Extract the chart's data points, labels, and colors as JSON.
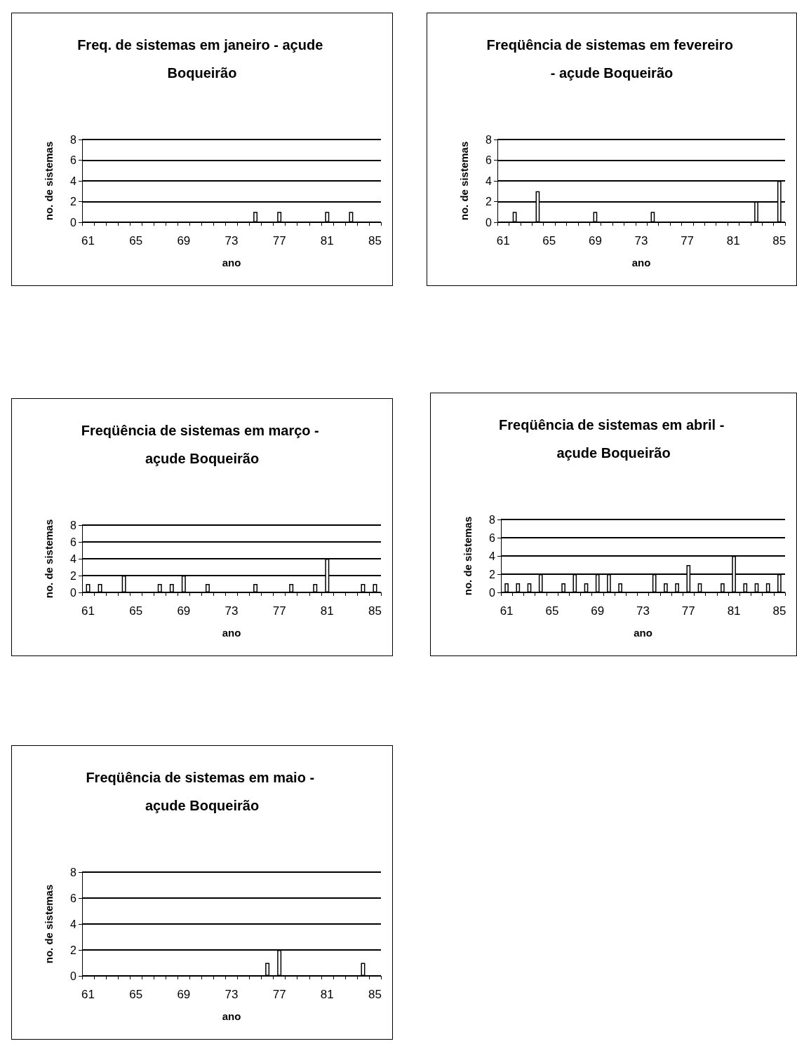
{
  "chart_data": [
    {
      "type": "bar",
      "title": "Freq. de sistemas em janeiro - açude Boqueirão",
      "xlabel": "ano",
      "ylabel": "no. de sistemas",
      "categories": [
        "61",
        null,
        null,
        null,
        "65",
        null,
        null,
        null,
        "69",
        null,
        null,
        null,
        "73",
        null,
        null,
        null,
        "77",
        null,
        null,
        null,
        "81",
        null,
        null,
        null,
        "85"
      ],
      "values": [
        0,
        0,
        0,
        0,
        0,
        0,
        0,
        0,
        0,
        0,
        0,
        0,
        0,
        0,
        1,
        0,
        1,
        0,
        0,
        0,
        1,
        0,
        1,
        0,
        0
      ],
      "color": "#ffffff",
      "ylim": [
        0,
        8
      ],
      "yticks": [
        0,
        2,
        4,
        6,
        8
      ],
      "grid": "y"
    },
    {
      "type": "bar",
      "title": "Freqüência de sistemas em fevereiro - açude Boqueirão",
      "xlabel": "ano",
      "ylabel": "no. de sistemas",
      "categories": [
        "61",
        null,
        null,
        null,
        "65",
        null,
        null,
        null,
        "69",
        null,
        null,
        null,
        "73",
        null,
        null,
        null,
        "77",
        null,
        null,
        null,
        "81",
        null,
        null,
        null,
        "85"
      ],
      "values": [
        0,
        1,
        0,
        3,
        0,
        0,
        0,
        0,
        1,
        0,
        0,
        0,
        0,
        1,
        0,
        0,
        0,
        0,
        0,
        0,
        0,
        0,
        2,
        0,
        4
      ],
      "color": "#ffffff",
      "ylim": [
        0,
        8
      ],
      "yticks": [
        0,
        2,
        4,
        6,
        8
      ],
      "grid": "y"
    },
    {
      "type": "bar",
      "title": "Freqüência de sistemas em março - açude Boqueirão",
      "xlabel": "ano",
      "ylabel": "no. de sistemas",
      "categories": [
        "61",
        null,
        null,
        null,
        "65",
        null,
        null,
        null,
        "69",
        null,
        null,
        null,
        "73",
        null,
        null,
        null,
        "77",
        null,
        null,
        null,
        "81",
        null,
        null,
        null,
        "85"
      ],
      "values": [
        1,
        1,
        0,
        2,
        0,
        0,
        1,
        1,
        2,
        0,
        1,
        0,
        0,
        0,
        1,
        0,
        0,
        1,
        0,
        1,
        4,
        0,
        0,
        1,
        1
      ],
      "color": "#ffffff",
      "ylim": [
        0,
        8
      ],
      "yticks": [
        0,
        2,
        4,
        6,
        8
      ],
      "grid": "y"
    },
    {
      "type": "bar",
      "title": "Freqüência de sistemas em abril - açude Boqueirão",
      "xlabel": "ano",
      "ylabel": "no. de sistemas",
      "categories": [
        "61",
        null,
        null,
        null,
        "65",
        null,
        null,
        null,
        "69",
        null,
        null,
        null,
        "73",
        null,
        null,
        null,
        "77",
        null,
        null,
        null,
        "81",
        null,
        null,
        null,
        "85"
      ],
      "values": [
        1,
        1,
        1,
        2,
        0,
        1,
        2,
        1,
        2,
        2,
        1,
        0,
        0,
        2,
        1,
        1,
        3,
        1,
        0,
        1,
        4,
        1,
        1,
        1,
        2
      ],
      "color": "#ffffff",
      "ylim": [
        0,
        8
      ],
      "yticks": [
        0,
        2,
        4,
        6,
        8
      ],
      "grid": "y"
    },
    {
      "type": "bar",
      "title": "Freqüência de sistemas em maio - açude Boqueirão",
      "xlabel": "ano",
      "ylabel": "no. de sistemas",
      "categories": [
        "61",
        null,
        null,
        null,
        "65",
        null,
        null,
        null,
        "69",
        null,
        null,
        null,
        "73",
        null,
        null,
        null,
        "77",
        null,
        null,
        null,
        "81",
        null,
        null,
        null,
        "85"
      ],
      "values": [
        0,
        0,
        0,
        0,
        0,
        0,
        0,
        0,
        0,
        0,
        0,
        0,
        0,
        0,
        0,
        1,
        2,
        0,
        0,
        0,
        0,
        0,
        0,
        1,
        0
      ],
      "color": "#ffffff",
      "ylim": [
        0,
        8
      ],
      "yticks": [
        0,
        2,
        4,
        6,
        8
      ],
      "grid": "y"
    }
  ]
}
